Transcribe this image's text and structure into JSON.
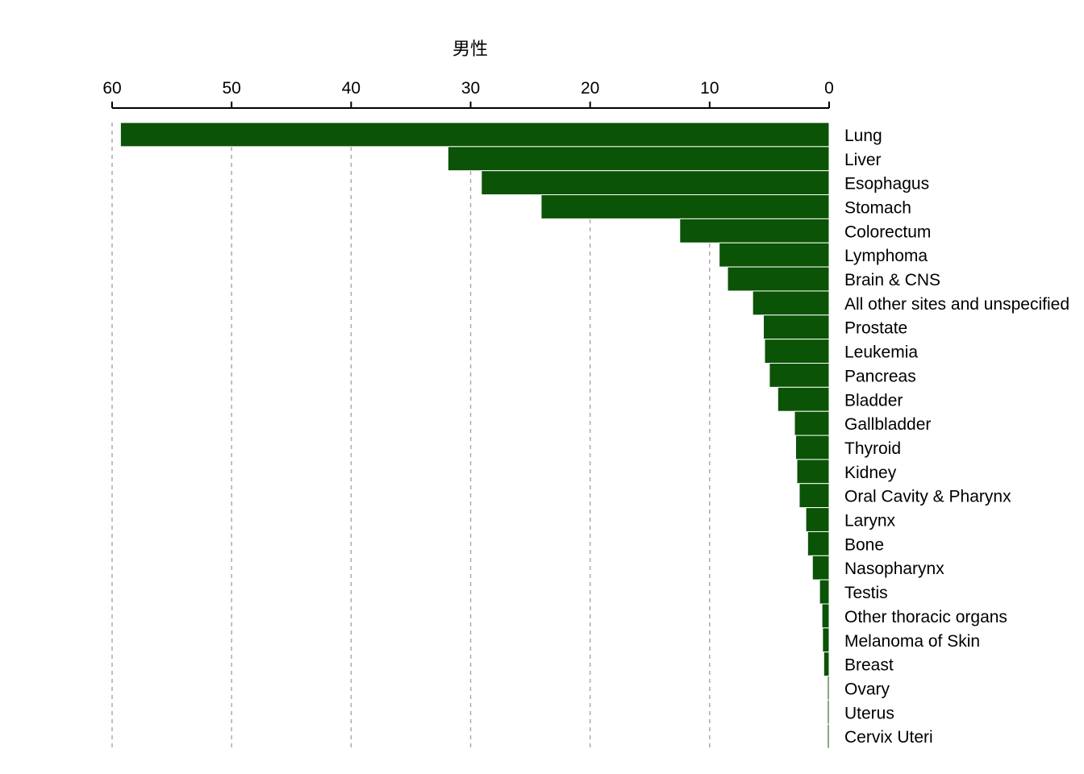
{
  "chart_data": {
    "type": "bar",
    "orientation": "horizontal",
    "title": "男性",
    "xlabel": "",
    "ylabel": "",
    "xlim": [
      60,
      0
    ],
    "x_ticks": [
      60,
      50,
      40,
      30,
      20,
      10,
      0
    ],
    "x_axis_position": "top",
    "x_reversed": true,
    "grid": "vertical dashed",
    "bar_color": "#0b5306",
    "categories": [
      "Lung",
      "Liver",
      "Esophagus",
      "Stomach",
      "Colorectum",
      "Lymphoma",
      "Brain & CNS",
      "All other sites and unspecified",
      "Prostate",
      "Leukemia",
      "Pancreas",
      "Bladder",
      "Gallbladder",
      "Thyroid",
      "Kidney",
      "Oral Cavity & Pharynx",
      "Larynx",
      "Bone",
      "Nasopharynx",
      "Testis",
      "Other thoracic organs",
      "Melanoma of Skin",
      "Breast",
      "Ovary",
      "Uterus",
      "Cervix Uteri"
    ],
    "values": [
      59.3,
      31.9,
      29.1,
      24.1,
      12.5,
      9.2,
      8.5,
      6.4,
      5.5,
      5.4,
      5.0,
      4.3,
      2.9,
      2.8,
      2.7,
      2.5,
      1.95,
      1.8,
      1.4,
      0.8,
      0.6,
      0.55,
      0.45,
      0.07,
      0.07,
      0.07
    ]
  }
}
